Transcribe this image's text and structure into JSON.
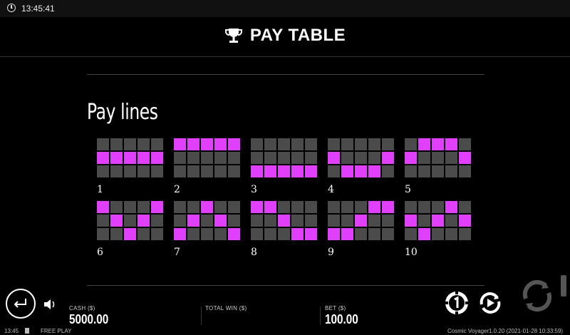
{
  "topbar": {
    "time": "13:45:41"
  },
  "header": {
    "title": "PAY TABLE"
  },
  "section": {
    "title": "Pay lines"
  },
  "paylines": [
    {
      "label": "1",
      "rows": [
        "00000",
        "11111",
        "00000"
      ]
    },
    {
      "label": "2",
      "rows": [
        "11111",
        "00000",
        "00000"
      ]
    },
    {
      "label": "3",
      "rows": [
        "00000",
        "00000",
        "11111"
      ]
    },
    {
      "label": "4",
      "rows": [
        "00000",
        "10001",
        "01110"
      ]
    },
    {
      "label": "5",
      "rows": [
        "01110",
        "10001",
        "00000"
      ]
    },
    {
      "label": "6",
      "rows": [
        "10001",
        "01010",
        "00100"
      ]
    },
    {
      "label": "7",
      "rows": [
        "00100",
        "01010",
        "10001"
      ]
    },
    {
      "label": "8",
      "rows": [
        "11000",
        "00100",
        "00011"
      ]
    },
    {
      "label": "9",
      "rows": [
        "00011",
        "00100",
        "11000"
      ]
    },
    {
      "label": "10",
      "rows": [
        "00010",
        "10101",
        "01000"
      ]
    }
  ],
  "stats": {
    "cash_label": "CASH ($)",
    "cash_value": "5000.00",
    "win_label": "TOTAL WIN ($)",
    "win_value": "",
    "bet_label": "BET ($)",
    "bet_value": "100.00"
  },
  "statusbar": {
    "time": "13:45",
    "mode": "FREE PLAY",
    "game": "Cosmic Voyager",
    "version": "1.0.20 (2021-01-28 10:33:59)"
  },
  "colors": {
    "active": "#e040fb",
    "inactive": "#4b4b4b"
  }
}
